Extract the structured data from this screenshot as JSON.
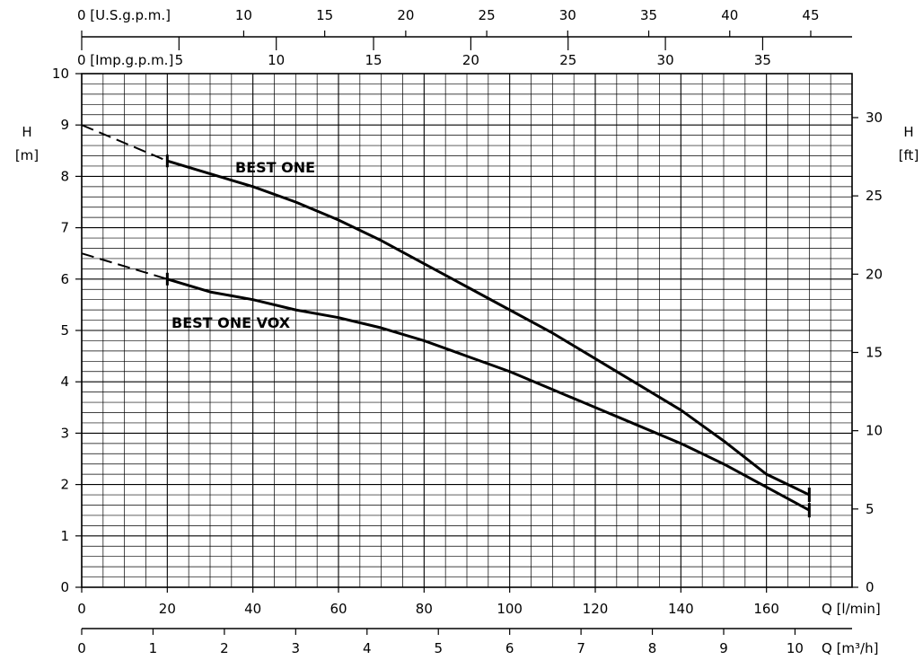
{
  "chart_data": {
    "type": "line",
    "ylabel_left": {
      "symbol": "H",
      "unit": "[m]"
    },
    "ylabel_right": {
      "symbol": "H",
      "unit": "[ft]"
    },
    "y_range": [
      0,
      10
    ],
    "y_ticks": [
      0,
      1,
      2,
      3,
      4,
      5,
      6,
      7,
      8,
      9,
      10
    ],
    "y_right_ticks": [
      0,
      5,
      10,
      15,
      20,
      25,
      30
    ],
    "x_range": [
      0,
      180
    ],
    "x_ticks": [
      0,
      20,
      40,
      60,
      80,
      100,
      120,
      140,
      160
    ],
    "x_unit_label": "Q  [l/min]",
    "x_m3h_ticks": [
      0,
      1,
      2,
      3,
      4,
      5,
      6,
      7,
      8,
      9,
      10
    ],
    "x_m3h_label": "Q  [m³/h]",
    "usgpm_prefix": "0  [U.S.g.p.m.]",
    "usgpm_ticks": [
      10,
      15,
      20,
      25,
      30,
      35,
      40,
      45
    ],
    "impgpm_prefix": "0  [Imp.g.p.m.]",
    "impgpm_ticks": [
      5,
      10,
      15,
      20,
      25,
      30,
      35
    ],
    "grid": true,
    "series": [
      {
        "name": "BEST ONE",
        "x": [
          20,
          40,
          50,
          60,
          70,
          80,
          90,
          100,
          110,
          120,
          130,
          140,
          150,
          160,
          170
        ],
        "y": [
          8.3,
          7.8,
          7.5,
          7.15,
          6.75,
          6.3,
          5.85,
          5.4,
          4.95,
          4.45,
          3.95,
          3.45,
          2.85,
          2.2,
          1.8
        ],
        "extrapolated": {
          "x": [
            0,
            20
          ],
          "y": [
            9.0,
            8.3
          ]
        }
      },
      {
        "name": "BEST ONE VOX",
        "x": [
          20,
          30,
          40,
          50,
          60,
          70,
          80,
          90,
          100,
          110,
          120,
          130,
          140,
          150,
          160,
          170
        ],
        "y": [
          6.0,
          5.75,
          5.6,
          5.4,
          5.25,
          5.05,
          4.8,
          4.5,
          4.2,
          3.85,
          3.5,
          3.15,
          2.8,
          2.4,
          1.95,
          1.5
        ],
        "extrapolated": {
          "x": [
            0,
            20
          ],
          "y": [
            6.5,
            6.0
          ]
        }
      }
    ]
  }
}
